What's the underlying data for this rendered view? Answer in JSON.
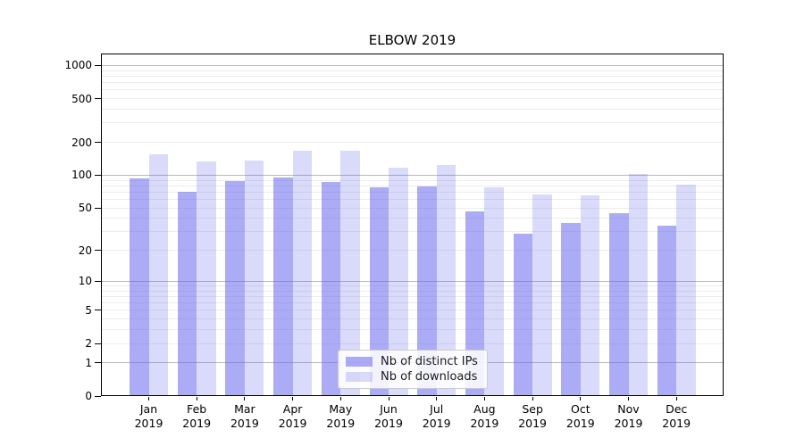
{
  "chart_data": {
    "type": "bar",
    "title": "ELBOW 2019",
    "categories": [
      "Jan",
      "Feb",
      "Mar",
      "Apr",
      "May",
      "Jun",
      "Jul",
      "Aug",
      "Sep",
      "Oct",
      "Nov",
      "Dec"
    ],
    "category_year": "2019",
    "series": [
      {
        "name": "Nb of distinct IPs",
        "color": "rgba(102,102,238,0.55)",
        "values": [
          93,
          71,
          89,
          95,
          86,
          78,
          79,
          46,
          29,
          36,
          45,
          34
        ]
      },
      {
        "name": "Nb of downloads",
        "color": "rgba(102,102,238,0.24)",
        "values": [
          154,
          133,
          136,
          167,
          167,
          118,
          124,
          77,
          66,
          65,
          103,
          82
        ]
      }
    ],
    "yscale": "log1p",
    "ylim": [
      0,
      1300
    ],
    "yticks": [
      0,
      1,
      2,
      5,
      10,
      20,
      50,
      100,
      200,
      500,
      1000
    ],
    "major_grid_values": [
      1,
      10,
      100,
      1000
    ],
    "minor_grid_values": [
      2,
      3,
      4,
      5,
      6,
      7,
      8,
      9,
      20,
      30,
      40,
      50,
      60,
      70,
      80,
      90,
      200,
      300,
      400,
      500,
      600,
      700,
      800,
      900
    ],
    "legend": {
      "position": "lower center"
    },
    "grid": true
  },
  "colors": {
    "background": "#ffffff",
    "spine": "#000000",
    "major_grid": "#b9b9b9",
    "minor_grid": "#ececec",
    "text": "#000000"
  }
}
